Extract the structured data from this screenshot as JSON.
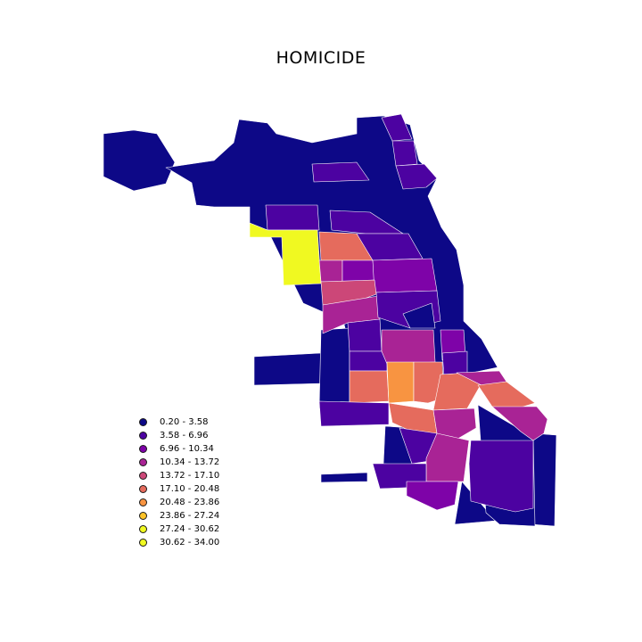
{
  "title": "HOMICIDE",
  "legend": [
    {
      "label": "0.20 - 3.58",
      "color": "#0d0887"
    },
    {
      "label": "3.58 - 6.96",
      "color": "#4c02a1"
    },
    {
      "label": "6.96 - 10.34",
      "color": "#7e03a8"
    },
    {
      "label": "10.34 - 13.72",
      "color": "#a92395"
    },
    {
      "label": "13.72 - 17.10",
      "color": "#cc4778"
    },
    {
      "label": "17.10 - 20.48",
      "color": "#e56b5d"
    },
    {
      "label": "20.48 - 23.86",
      "color": "#f89441"
    },
    {
      "label": "23.86 - 27.24",
      "color": "#fdc328"
    },
    {
      "label": "27.24 - 30.62",
      "color": "#f0f921"
    },
    {
      "label": "30.62 - 34.00",
      "color": "#f0f921"
    }
  ],
  "colors": {
    "c0": "#0d0887",
    "c1": "#4c02a1",
    "c2": "#7e03a8",
    "c3": "#a92395",
    "c4": "#cc4778",
    "c5": "#e56b5d",
    "c6": "#f89441",
    "c7": "#fdc328",
    "c8": "#f0f921",
    "c9": "#f0f921"
  }
}
